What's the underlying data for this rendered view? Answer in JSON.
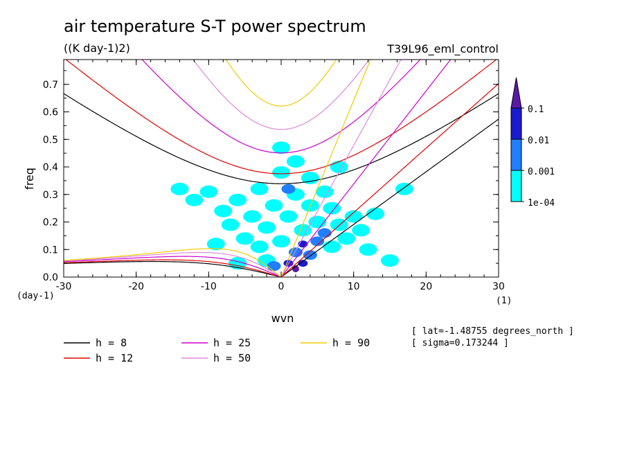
{
  "chart_data": {
    "type": "heatmap",
    "title": "air temperature S-T power spectrum",
    "units": "((K day-1)2)",
    "run_label": "T39L96_eml_control",
    "xlabel": "wvn",
    "ylabel": "freq",
    "x_unit_label": "(1)",
    "y_unit_label": "(day-1)",
    "xlim": [
      -30,
      30
    ],
    "ylim": [
      0,
      0.79
    ],
    "x_ticks": [
      "-30",
      "-20",
      "-10",
      "0",
      "10",
      "20",
      "30"
    ],
    "x_tick_values": [
      -30,
      -20,
      -10,
      0,
      10,
      20,
      30
    ],
    "y_ticks": [
      "0.0",
      "0.1",
      "0.2",
      "0.3",
      "0.4",
      "0.5",
      "0.6",
      "0.7"
    ],
    "y_tick_values": [
      0.0,
      0.1,
      0.2,
      0.3,
      0.4,
      0.5,
      0.6,
      0.7
    ],
    "colorbar": {
      "labels": [
        "0.1",
        "0.01",
        "0.001",
        "1e-04"
      ],
      "colors": [
        "#5a1aa8",
        "#1a1ad0",
        "#1f7fff",
        "#00ffff"
      ],
      "extend": "max"
    },
    "annotations": {
      "lat": "[ lat=-1.48755 degrees_north ]",
      "sigma": "[ sigma=0.173244 ]"
    },
    "series": [
      {
        "name": "h =  8",
        "h": 8,
        "color": "#000000"
      },
      {
        "name": "h = 12",
        "h": 12,
        "color": "#dd0000"
      },
      {
        "name": "h = 25",
        "h": 25,
        "color": "#cc00cc"
      },
      {
        "name": "h = 50",
        "h": 50,
        "color": "#dd88dd"
      },
      {
        "name": "h = 90",
        "h": 90,
        "color": "#eecc00"
      }
    ],
    "spectral_blobs": [
      {
        "k": -14,
        "f": 0.32,
        "level": 4
      },
      {
        "k": -12,
        "f": 0.28,
        "level": 4
      },
      {
        "k": -10,
        "f": 0.31,
        "level": 4
      },
      {
        "k": -8,
        "f": 0.24,
        "level": 4
      },
      {
        "k": -7,
        "f": 0.19,
        "level": 4
      },
      {
        "k": -6,
        "f": 0.28,
        "level": 4
      },
      {
        "k": -5,
        "f": 0.14,
        "level": 4
      },
      {
        "k": -4,
        "f": 0.22,
        "level": 4
      },
      {
        "k": -3,
        "f": 0.11,
        "level": 4
      },
      {
        "k": -3,
        "f": 0.32,
        "level": 4
      },
      {
        "k": -2,
        "f": 0.06,
        "level": 4
      },
      {
        "k": -2,
        "f": 0.18,
        "level": 4
      },
      {
        "k": -1,
        "f": 0.04,
        "level": 3
      },
      {
        "k": -1,
        "f": 0.26,
        "level": 4
      },
      {
        "k": 0,
        "f": 0.13,
        "level": 4
      },
      {
        "k": 0,
        "f": 0.38,
        "level": 4
      },
      {
        "k": 0,
        "f": 0.47,
        "level": 4
      },
      {
        "k": 1,
        "f": 0.05,
        "level": 2
      },
      {
        "k": 1,
        "f": 0.22,
        "level": 4
      },
      {
        "k": 2,
        "f": 0.09,
        "level": 3
      },
      {
        "k": 2,
        "f": 0.3,
        "level": 4
      },
      {
        "k": 2,
        "f": 0.42,
        "level": 4
      },
      {
        "k": 3,
        "f": 0.12,
        "level": 2
      },
      {
        "k": 3,
        "f": 0.17,
        "level": 4
      },
      {
        "k": 4,
        "f": 0.08,
        "level": 3
      },
      {
        "k": 4,
        "f": 0.26,
        "level": 4
      },
      {
        "k": 4,
        "f": 0.36,
        "level": 4
      },
      {
        "k": 5,
        "f": 0.13,
        "level": 3
      },
      {
        "k": 5,
        "f": 0.2,
        "level": 4
      },
      {
        "k": 6,
        "f": 0.16,
        "level": 3
      },
      {
        "k": 6,
        "f": 0.31,
        "level": 4
      },
      {
        "k": 7,
        "f": 0.11,
        "level": 4
      },
      {
        "k": 7,
        "f": 0.25,
        "level": 4
      },
      {
        "k": 8,
        "f": 0.19,
        "level": 4
      },
      {
        "k": 8,
        "f": 0.4,
        "level": 4
      },
      {
        "k": 9,
        "f": 0.14,
        "level": 4
      },
      {
        "k": 10,
        "f": 0.22,
        "level": 4
      },
      {
        "k": 11,
        "f": 0.17,
        "level": 4
      },
      {
        "k": 12,
        "f": 0.1,
        "level": 4
      },
      {
        "k": 13,
        "f": 0.23,
        "level": 4
      },
      {
        "k": 15,
        "f": 0.06,
        "level": 4
      },
      {
        "k": 17,
        "f": 0.32,
        "level": 4
      },
      {
        "k": -6,
        "f": 0.05,
        "level": 4
      },
      {
        "k": -9,
        "f": 0.12,
        "level": 4
      },
      {
        "k": 1,
        "f": 0.32,
        "level": 3
      },
      {
        "k": 3,
        "f": 0.05,
        "level": 2
      },
      {
        "k": 2,
        "f": 0.03,
        "level": 1
      }
    ]
  }
}
